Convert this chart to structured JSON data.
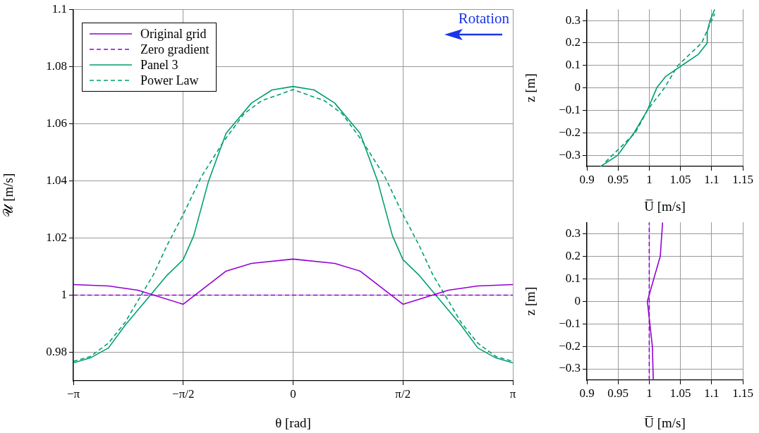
{
  "chart_data": [
    {
      "type": "line",
      "xlabel": "θ [rad]",
      "ylabel": "𝒰 [m/s]",
      "xlim": [
        -3.1416,
        3.1416
      ],
      "ylim": [
        0.97,
        1.1
      ],
      "xticks": [
        {
          "value": -3.1416,
          "label": "−π"
        },
        {
          "value": -1.5708,
          "label": "−π/2"
        },
        0,
        {
          "value": 1.5708,
          "label": "π/2"
        },
        {
          "value": 3.1416,
          "label": "π"
        }
      ],
      "yticks": [
        0.98,
        1,
        1.02,
        1.04,
        1.06,
        1.08,
        1.1
      ],
      "grid": true,
      "legend": "top left",
      "annotations": [
        "Rotation"
      ],
      "series": [
        {
          "name": "Original grid",
          "color": "#9400d3",
          "line_style": "solid",
          "x": [
            -3.1416,
            -2.64,
            -2.22,
            -1.5708,
            -0.958,
            -0.595,
            0,
            0.595,
            0.958,
            1.5708,
            2.22,
            2.64,
            3.1416
          ],
          "values": [
            1.0037,
            1.0032,
            1.0017,
            0.9968,
            1.0084,
            1.0111,
            1.0126,
            1.0111,
            1.0084,
            0.9968,
            1.0017,
            1.0032,
            1.0037
          ]
        },
        {
          "name": "Zero gradient",
          "color": "#9400d3",
          "line_style": "dashed",
          "x": [
            -3.1416,
            3.1416
          ],
          "values": [
            1,
            1
          ]
        },
        {
          "name": "Panel 3",
          "color": "#009e73",
          "line_style": "solid",
          "x": [
            -3.1416,
            -2.9,
            -2.64,
            -2.4,
            -2.04,
            -1.8,
            -1.5708,
            -1.42,
            -1.21,
            -0.958,
            -0.595,
            -0.3,
            0,
            0.3,
            0.595,
            0.958,
            1.21,
            1.42,
            1.5708,
            1.8,
            2.04,
            2.4,
            2.64,
            2.9,
            3.1416
          ],
          "values": [
            0.9763,
            0.978,
            0.9815,
            0.9895,
            1,
            1.007,
            1.0124,
            1.0208,
            1.0398,
            1.0566,
            1.0672,
            1.0718,
            1.073,
            1.0718,
            1.0672,
            1.0566,
            1.0398,
            1.0208,
            1.0124,
            1.007,
            1,
            0.9895,
            0.9815,
            0.978,
            0.9763
          ]
        },
        {
          "name": "Power Law",
          "color": "#009e73",
          "line_style": "dashed",
          "x": [
            -3.1416,
            -2.9,
            -2.64,
            -2.4,
            -2.22,
            -2,
            -1.8,
            -1.5708,
            -1.31,
            -0.99,
            -0.7,
            -0.45,
            0,
            0.45,
            0.7,
            0.99,
            1.31,
            1.5708,
            1.8,
            2,
            2.22,
            2.4,
            2.64,
            2.9,
            3.1416
          ],
          "values": [
            0.9768,
            0.9785,
            0.9832,
            0.9905,
            0.998,
            1.007,
            1.0175,
            1.0282,
            1.0415,
            1.0539,
            1.0635,
            1.068,
            1.0719,
            1.068,
            1.0635,
            1.0539,
            1.0415,
            1.0282,
            1.0175,
            1.007,
            0.998,
            0.9905,
            0.9832,
            0.9785,
            0.9768
          ]
        }
      ]
    },
    {
      "type": "line",
      "xlabel": "U̅ [m/s]",
      "ylabel": "z [m]",
      "xlim": [
        0.9,
        1.15
      ],
      "ylim": [
        -0.35,
        0.35
      ],
      "xticks": [
        0.9,
        0.95,
        1,
        1.05,
        1.1,
        1.15
      ],
      "yticks": [
        {
          "value": -0.3,
          "label": "−0.3"
        },
        {
          "value": -0.2,
          "label": "−0.2"
        },
        {
          "value": -0.1,
          "label": "−0.1"
        },
        0,
        0.1,
        0.2,
        0.3
      ],
      "grid": true,
      "series": [
        {
          "color": "#009e73",
          "line_style": "solid",
          "x": [
            0.922,
            0.9495,
            0.9757,
            0.997,
            1.012,
            1.026,
            1.0525,
            1.079,
            1.093,
            1.093,
            1.0975,
            1.105
          ],
          "values": [
            -0.35,
            -0.3,
            -0.2,
            -0.1,
            0,
            0.05,
            0.1,
            0.15,
            0.2,
            0.25,
            0.3,
            0.35
          ]
        },
        {
          "color": "#009e73",
          "line_style": "dashed",
          "x": [
            0.93,
            0.9776,
            0.997,
            1.0244,
            1.046,
            1.084,
            1.105
          ],
          "values": [
            -0.33,
            -0.2,
            -0.1,
            0,
            0.1,
            0.2,
            0.33
          ]
        }
      ]
    },
    {
      "type": "line",
      "xlabel": "U̅ [m/s]",
      "ylabel": "z [m]",
      "xlim": [
        0.9,
        1.15
      ],
      "ylim": [
        -0.35,
        0.35
      ],
      "xticks": [
        0.9,
        0.95,
        1,
        1.05,
        1.1,
        1.15
      ],
      "yticks": [
        {
          "value": -0.3,
          "label": "−0.3"
        },
        {
          "value": -0.2,
          "label": "−0.2"
        },
        {
          "value": -0.1,
          "label": "−0.1"
        },
        0,
        0.1,
        0.2,
        0.3
      ],
      "grid": true,
      "series": [
        {
          "color": "#9400d3",
          "line_style": "solid",
          "x": [
            1.0214,
            1.0177,
            0.997,
            1.005,
            1.0065
          ],
          "values": [
            0.35,
            0.2,
            0,
            -0.2,
            -0.35
          ]
        },
        {
          "color": "#9400d3",
          "line_style": "dashed",
          "x": [
            1,
            1
          ],
          "values": [
            -0.35,
            0.35
          ]
        }
      ]
    }
  ]
}
